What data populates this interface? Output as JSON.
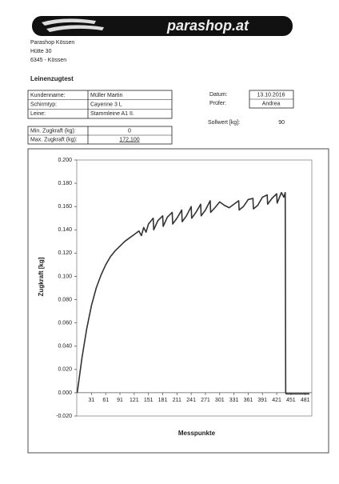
{
  "header": {
    "logo": "parashop.at",
    "address": [
      "Parashop Kössen",
      "Hütte 30",
      "6345 - Kössen"
    ],
    "title": "Leinenzugtest"
  },
  "info": {
    "rows": [
      [
        "Kundenname:",
        "Müller Martin"
      ],
      [
        "Schirmtyp:",
        "Cayenne 3 L"
      ],
      [
        "Leine:",
        "Stammleine A1 II."
      ]
    ],
    "date_label": "Datum:",
    "date": "13.10.2016",
    "tester_label": "Prüfer:",
    "tester": "Andrea",
    "target_label": "Sollwert [kg]:",
    "target": "90"
  },
  "force": {
    "rows": [
      [
        "Min. Zugkraft (kg):",
        "0"
      ],
      [
        "Max. Zugkraft (kg):",
        "172,100"
      ]
    ]
  },
  "chart_data": {
    "type": "line",
    "xlabel": "Messpunkte",
    "ylabel": "Zugkraft [kg]",
    "color": "#333333",
    "x": [
      1,
      11,
      21,
      31,
      41,
      51,
      61,
      71,
      81,
      91,
      101,
      111,
      121,
      131,
      136,
      141,
      146,
      151,
      161,
      162,
      171,
      181,
      182,
      191,
      201,
      202,
      211,
      221,
      222,
      231,
      241,
      242,
      251,
      261,
      262,
      271,
      281,
      282,
      291,
      301,
      311,
      321,
      331,
      341,
      342,
      351,
      361,
      371,
      372,
      381,
      391,
      401,
      402,
      411,
      421,
      422,
      431,
      436,
      439,
      440,
      441,
      490
    ],
    "values": [
      0,
      0.03,
      0.055,
      0.075,
      0.09,
      0.101,
      0.11,
      0.117,
      0.122,
      0.126,
      0.13,
      0.133,
      0.136,
      0.139,
      0.135,
      0.142,
      0.138,
      0.145,
      0.15,
      0.14,
      0.148,
      0.152,
      0.143,
      0.151,
      0.155,
      0.145,
      0.15,
      0.157,
      0.147,
      0.152,
      0.16,
      0.15,
      0.155,
      0.162,
      0.152,
      0.157,
      0.165,
      0.155,
      0.159,
      0.164,
      0.161,
      0.159,
      0.162,
      0.165,
      0.157,
      0.16,
      0.166,
      0.167,
      0.158,
      0.161,
      0.168,
      0.17,
      0.162,
      0.167,
      0.171,
      0.163,
      0.172,
      0.168,
      0.172,
      0,
      -0.001,
      -0.001
    ],
    "xlim": [
      0,
      495
    ],
    "xticks": [
      31,
      61,
      91,
      121,
      151,
      181,
      211,
      241,
      271,
      301,
      331,
      361,
      391,
      421,
      451,
      481
    ],
    "ylim": [
      -0.02,
      0.2
    ],
    "yticks": [
      {
        "value": -0.02,
        "label": "-0.020"
      },
      {
        "value": 0,
        "label": "0.000"
      },
      {
        "value": 0.02,
        "label": "0.020"
      },
      {
        "value": 0.04,
        "label": "0.040"
      },
      {
        "value": 0.06,
        "label": "0.060"
      },
      {
        "value": 0.08,
        "label": "0.080"
      },
      {
        "value": 0.1,
        "label": "0.100"
      },
      {
        "value": 0.12,
        "label": "0.120"
      },
      {
        "value": 0.14,
        "label": "0.140"
      },
      {
        "value": 0.16,
        "label": "0.160"
      },
      {
        "value": 0.18,
        "label": "0.180"
      },
      {
        "value": 0.2,
        "label": "0.200"
      }
    ]
  }
}
